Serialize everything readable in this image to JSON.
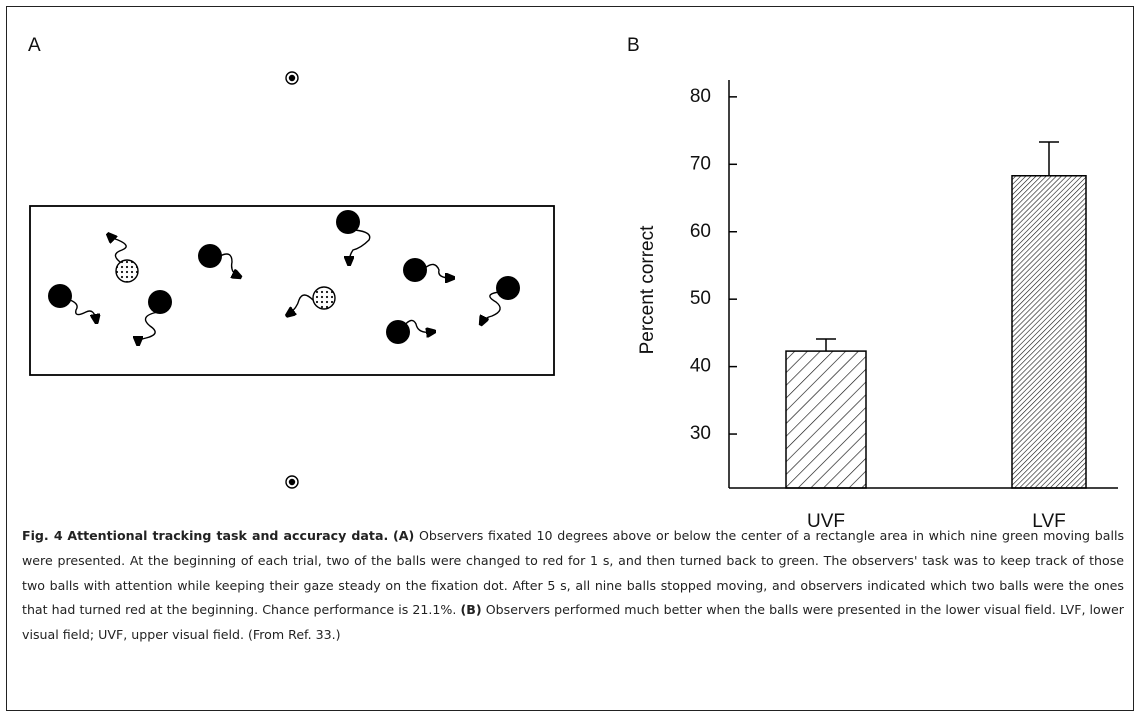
{
  "panel_a": {
    "label": "A"
  },
  "chart_data": {
    "type": "bar",
    "panel_label": "B",
    "ylabel": "Percent correct",
    "categories": [
      "UVF",
      "LVF"
    ],
    "values": [
      42.3,
      68.3
    ],
    "errors": [
      1.8,
      5
    ],
    "color": "#000000",
    "hatch": true,
    "ylim": [
      22,
      82.5
    ],
    "yticks": [
      30,
      40,
      50,
      60,
      70,
      80
    ]
  },
  "caption": {
    "figure_label": "Fig. 4",
    "title": "Attentional tracking task and accuracy data.",
    "parts": [
      {
        "label": "(A)",
        "text": "Observers fixated 10 degrees above or below the center of a rectangle area in which nine green moving balls were presented. At the beginning of each trial, two of the balls were changed to red for 1 s, and then turned back to green. The observers' task was to keep track of those two balls with attention while keeping their gaze steady on the fixation dot. After 5 s, all nine balls stopped moving, and observers indicated which two balls were the ones that had turned red at the beginning. Chance performance is 21.1%."
      },
      {
        "label": "(B)",
        "text": "Observers performed much better when the balls were presented in the lower visual field. LVF, lower visual field; UVF, upper visual field. (From Ref. 33.)"
      }
    ]
  }
}
